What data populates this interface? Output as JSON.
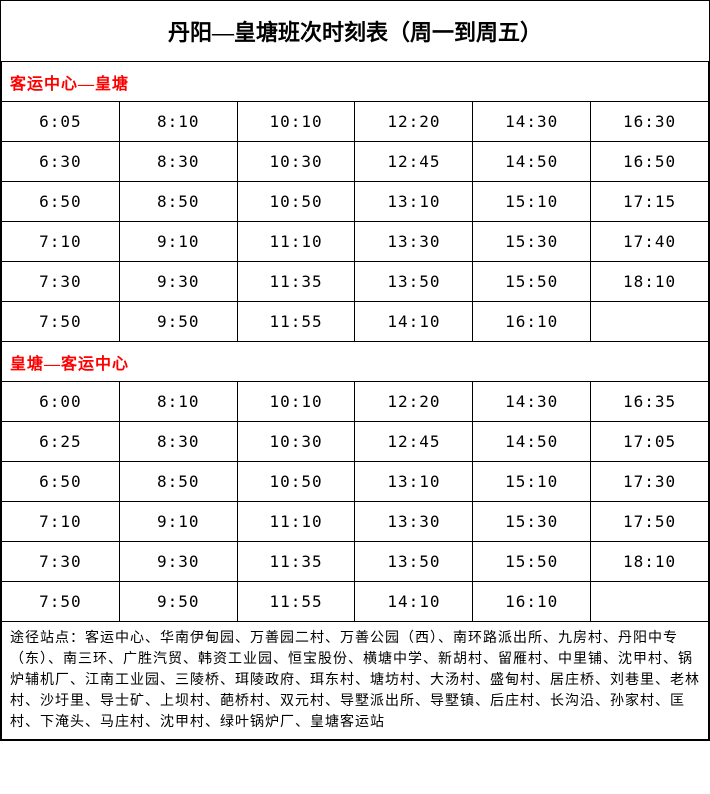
{
  "title": "丹阳—皇塘班次时刻表（周一到周五）",
  "section1": {
    "header": "客运中心—皇塘",
    "rows": [
      [
        "6:05",
        "8:10",
        "10:10",
        "12:20",
        "14:30",
        "16:30"
      ],
      [
        "6:30",
        "8:30",
        "10:30",
        "12:45",
        "14:50",
        "16:50"
      ],
      [
        "6:50",
        "8:50",
        "10:50",
        "13:10",
        "15:10",
        "17:15"
      ],
      [
        "7:10",
        "9:10",
        "11:10",
        "13:30",
        "15:30",
        "17:40"
      ],
      [
        "7:30",
        "9:30",
        "11:35",
        "13:50",
        "15:50",
        "18:10"
      ],
      [
        "7:50",
        "9:50",
        "11:55",
        "14:10",
        "16:10",
        ""
      ]
    ]
  },
  "section2": {
    "header": "皇塘—客运中心",
    "rows": [
      [
        "6:00",
        "8:10",
        "10:10",
        "12:20",
        "14:30",
        "16:35"
      ],
      [
        "6:25",
        "8:30",
        "10:30",
        "12:45",
        "14:50",
        "17:05"
      ],
      [
        "6:50",
        "8:50",
        "10:50",
        "13:10",
        "15:10",
        "17:30"
      ],
      [
        "7:10",
        "9:10",
        "11:10",
        "13:30",
        "15:30",
        "17:50"
      ],
      [
        "7:30",
        "9:30",
        "11:35",
        "13:50",
        "15:50",
        "18:10"
      ],
      [
        "7:50",
        "9:50",
        "11:55",
        "14:10",
        "16:10",
        ""
      ]
    ]
  },
  "footnote": "途径站点：客运中心、华南伊甸园、万善园二村、万善公园（西）、南环路派出所、九房村、丹阳中专（东）、南三环、广胜汽贸、韩资工业园、恒宝股份、横塘中学、新胡村、留雁村、中里铺、沈甲村、锅炉辅机厂、江南工业园、三陵桥、珥陵政府、珥东村、塘坊村、大汤村、盛甸村、居庄桥、刘巷里、老林村、沙圩里、导士矿、上坝村、葩桥村、双元村、导墅派出所、导墅镇、后庄村、长沟沿、孙家村、匡村、下淹头、马庄村、沈甲村、绿叶锅炉厂、皇塘客运站",
  "colors": {
    "section_header": "#ff0000",
    "border": "#000000",
    "text": "#000000",
    "background": "#ffffff"
  }
}
